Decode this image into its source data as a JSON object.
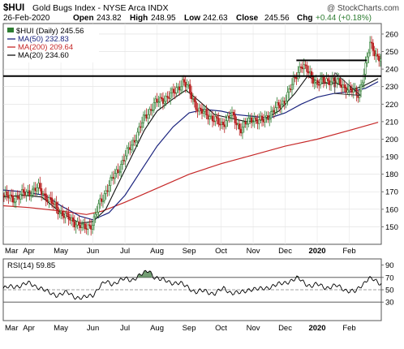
{
  "header": {
    "symbol": "$HUI",
    "name": "Gold Bugs Index - NYSE Arca INDX",
    "watermark": "@ StockCharts.com",
    "date": "26-Feb-2020",
    "open_label": "Open",
    "open": "243.82",
    "high_label": "High",
    "high": "248.95",
    "low_label": "Low",
    "low": "242.63",
    "close_label": "Close",
    "close": "245.56",
    "chg_label": "Chg",
    "chg": "+0.44 (+0.18%)"
  },
  "colors": {
    "up": "#2e7d32",
    "down": "#b71c1c",
    "ma50": "#1a237e",
    "ma200": "#c62828",
    "ma20": "#111111",
    "rsi": "#000000",
    "rsi_fill": "#5b8c5a",
    "chg_green": "#2e7d32"
  },
  "chart_data": [
    {
      "type": "candlestick",
      "legend": [
        {
          "label": "$HUI (Daily) 245.56",
          "color": "#2e7d32"
        },
        {
          "label": "MA(50) 232.83",
          "color": "#1a237e"
        },
        {
          "label": "MA(200) 209.64",
          "color": "#c62828"
        },
        {
          "label": "MA(20) 234.60",
          "color": "#111111"
        }
      ],
      "ylim": [
        140,
        266
      ],
      "y_ticks": [
        150,
        160,
        170,
        180,
        190,
        200,
        210,
        220,
        230,
        240,
        250,
        260
      ],
      "x_tick_labels": [
        "Mar",
        "Apr",
        "May",
        "Jun",
        "Jul",
        "Aug",
        "Sep",
        "Oct",
        "Nov",
        "Dec",
        "2020",
        "Feb"
      ],
      "x_tick_months": [
        0,
        1,
        2,
        3,
        4,
        5,
        6,
        7,
        8,
        9,
        10,
        11
      ],
      "x_range_months": [
        0.2,
        12.0
      ],
      "price_anchors": [
        [
          0.2,
          168
        ],
        [
          0.5,
          166
        ],
        [
          1.0,
          170
        ],
        [
          1.3,
          172
        ],
        [
          1.6,
          166
        ],
        [
          1.9,
          160
        ],
        [
          2.2,
          155
        ],
        [
          2.5,
          152
        ],
        [
          2.7,
          149
        ],
        [
          3.0,
          152
        ],
        [
          3.2,
          163
        ],
        [
          3.5,
          174
        ],
        [
          3.8,
          183
        ],
        [
          4.0,
          190
        ],
        [
          4.3,
          200
        ],
        [
          4.6,
          212
        ],
        [
          4.9,
          220
        ],
        [
          5.2,
          223
        ],
        [
          5.5,
          226
        ],
        [
          5.8,
          233
        ],
        [
          6.0,
          228
        ],
        [
          6.3,
          216
        ],
        [
          6.6,
          214
        ],
        [
          7.0,
          208
        ],
        [
          7.3,
          214
        ],
        [
          7.6,
          206
        ],
        [
          8.0,
          212
        ],
        [
          8.3,
          210
        ],
        [
          8.6,
          216
        ],
        [
          8.9,
          220
        ],
        [
          9.2,
          230
        ],
        [
          9.5,
          243
        ],
        [
          9.8,
          236
        ],
        [
          10.0,
          232
        ],
        [
          10.4,
          234
        ],
        [
          10.7,
          232
        ],
        [
          11.0,
          228
        ],
        [
          11.3,
          226
        ],
        [
          11.5,
          240
        ],
        [
          11.65,
          255
        ],
        [
          11.75,
          252
        ],
        [
          11.9,
          245.56
        ]
      ],
      "ma50": [
        [
          0.2,
          171
        ],
        [
          0.8,
          170
        ],
        [
          1.5,
          168
        ],
        [
          2.0,
          162
        ],
        [
          2.6,
          156
        ],
        [
          3.0,
          154
        ],
        [
          3.5,
          158
        ],
        [
          4.0,
          168
        ],
        [
          4.5,
          182
        ],
        [
          5.0,
          196
        ],
        [
          5.5,
          207
        ],
        [
          6.0,
          215
        ],
        [
          6.5,
          217
        ],
        [
          7.0,
          216
        ],
        [
          7.5,
          214
        ],
        [
          8.0,
          213
        ],
        [
          8.5,
          212
        ],
        [
          9.0,
          215
        ],
        [
          9.5,
          220
        ],
        [
          10.0,
          224
        ],
        [
          10.5,
          226
        ],
        [
          11.0,
          227
        ],
        [
          11.5,
          229
        ],
        [
          11.9,
          232.83
        ]
      ],
      "ma200": [
        [
          0.2,
          162
        ],
        [
          1.0,
          161
        ],
        [
          2.0,
          159
        ],
        [
          2.8,
          157
        ],
        [
          3.3,
          159
        ],
        [
          4.0,
          164
        ],
        [
          5.0,
          172
        ],
        [
          6.0,
          180
        ],
        [
          7.0,
          186
        ],
        [
          8.0,
          191
        ],
        [
          9.0,
          196
        ],
        [
          10.0,
          200
        ],
        [
          11.0,
          205
        ],
        [
          11.9,
          209.64
        ]
      ],
      "ma20": [
        [
          0.2,
          167
        ],
        [
          0.8,
          168
        ],
        [
          1.4,
          167
        ],
        [
          2.0,
          158
        ],
        [
          2.6,
          152
        ],
        [
          3.0,
          153
        ],
        [
          3.4,
          160
        ],
        [
          3.8,
          175
        ],
        [
          4.2,
          190
        ],
        [
          4.6,
          205
        ],
        [
          5.0,
          216
        ],
        [
          5.5,
          223
        ],
        [
          5.9,
          228
        ],
        [
          6.3,
          222
        ],
        [
          6.8,
          214
        ],
        [
          7.3,
          212
        ],
        [
          7.8,
          210
        ],
        [
          8.3,
          211
        ],
        [
          8.8,
          216
        ],
        [
          9.3,
          226
        ],
        [
          9.7,
          236
        ],
        [
          10.1,
          232
        ],
        [
          10.6,
          232
        ],
        [
          11.0,
          228
        ],
        [
          11.4,
          230
        ],
        [
          11.9,
          234.6
        ]
      ],
      "h_lines": [
        {
          "y": 236,
          "x0": 0.0,
          "x1": 12.0
        },
        {
          "y": 245,
          "x0": 9.35,
          "x1": 11.55
        }
      ],
      "triangle_lines": [
        [
          [
            10.55,
            238
          ],
          [
            11.35,
            225
          ]
        ],
        [
          [
            10.55,
            226
          ],
          [
            11.35,
            225
          ]
        ],
        [
          [
            10.55,
            238
          ],
          [
            10.55,
            226
          ]
        ]
      ]
    },
    {
      "type": "line",
      "legend": [
        {
          "label": "RSI(14) 59.85",
          "color": "#000000"
        }
      ],
      "ylim": [
        0,
        100
      ],
      "y_ticks": [
        30,
        50,
        70,
        90
      ],
      "ref_lines": [
        30,
        50,
        70
      ],
      "x_tick_labels": [
        "Mar",
        "Apr",
        "May",
        "Jun",
        "Jul",
        "Aug",
        "Sep",
        "Oct",
        "Nov",
        "Dec",
        "2020",
        "Feb"
      ],
      "x_tick_months": [
        0,
        1,
        2,
        3,
        4,
        5,
        6,
        7,
        8,
        9,
        10,
        11
      ],
      "x_range_months": [
        0.2,
        12.0
      ],
      "rsi": [
        [
          0.2,
          52
        ],
        [
          0.5,
          55
        ],
        [
          0.8,
          58
        ],
        [
          1.0,
          60
        ],
        [
          1.3,
          55
        ],
        [
          1.6,
          45
        ],
        [
          1.9,
          42
        ],
        [
          2.2,
          45
        ],
        [
          2.5,
          38
        ],
        [
          2.7,
          36
        ],
        [
          3.0,
          42
        ],
        [
          3.2,
          55
        ],
        [
          3.4,
          62
        ],
        [
          3.6,
          60
        ],
        [
          3.8,
          64
        ],
        [
          4.0,
          67
        ],
        [
          4.2,
          66
        ],
        [
          4.4,
          72
        ],
        [
          4.6,
          76
        ],
        [
          4.75,
          82
        ],
        [
          4.9,
          72
        ],
        [
          5.1,
          66
        ],
        [
          5.4,
          63
        ],
        [
          5.7,
          60
        ],
        [
          6.0,
          54
        ],
        [
          6.2,
          46
        ],
        [
          6.5,
          48
        ],
        [
          6.8,
          44
        ],
        [
          7.1,
          52
        ],
        [
          7.3,
          46
        ],
        [
          7.6,
          44
        ],
        [
          7.9,
          52
        ],
        [
          8.2,
          50
        ],
        [
          8.5,
          55
        ],
        [
          8.8,
          58
        ],
        [
          9.1,
          64
        ],
        [
          9.4,
          68
        ],
        [
          9.6,
          62
        ],
        [
          9.8,
          56
        ],
        [
          10.0,
          58
        ],
        [
          10.3,
          54
        ],
        [
          10.6,
          56
        ],
        [
          10.9,
          50
        ],
        [
          11.2,
          46
        ],
        [
          11.4,
          58
        ],
        [
          11.6,
          70
        ],
        [
          11.75,
          66
        ],
        [
          11.9,
          59.85
        ]
      ]
    }
  ]
}
